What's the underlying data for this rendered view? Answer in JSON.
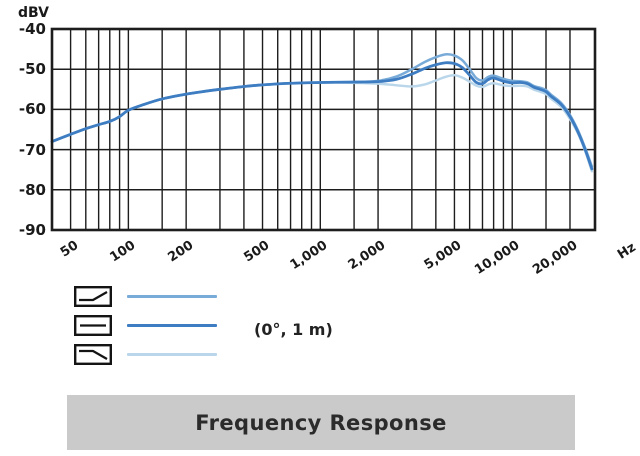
{
  "labels": {
    "y_unit": "dBV",
    "x_unit": "Hz"
  },
  "title_bar": {
    "text": "Frequency Response"
  },
  "chart_data": {
    "type": "line",
    "title": "Frequency Response",
    "legend_note": "(0°, 1 m)",
    "x_axis": {
      "scale": "log",
      "min": 40,
      "max": 27000,
      "unit": "Hz",
      "gridlines": [
        50,
        60,
        70,
        80,
        90,
        100,
        150,
        200,
        300,
        400,
        500,
        600,
        700,
        800,
        900,
        1000,
        1500,
        2000,
        3000,
        4000,
        5000,
        6000,
        7000,
        8000,
        9000,
        10000,
        15000,
        20000
      ],
      "tick_labels": [
        {
          "f": 50,
          "label": "50"
        },
        {
          "f": 100,
          "label": "100"
        },
        {
          "f": 200,
          "label": "200"
        },
        {
          "f": 500,
          "label": "500"
        },
        {
          "f": 1000,
          "label": "1,000"
        },
        {
          "f": 2000,
          "label": "2,000"
        },
        {
          "f": 5000,
          "label": "5,000"
        },
        {
          "f": 10000,
          "label": "10,000"
        },
        {
          "f": 20000,
          "label": "20,000"
        }
      ]
    },
    "y_axis": {
      "unit": "dBV",
      "min": -90,
      "max": -40,
      "ticks": [
        -40,
        -50,
        -60,
        -70,
        -80,
        -90
      ]
    },
    "frequencies": [
      40,
      50,
      60,
      70,
      80,
      90,
      100,
      120,
      150,
      200,
      250,
      300,
      400,
      500,
      700,
      1000,
      1500,
      2000,
      2500,
      3000,
      3500,
      4000,
      4500,
      5000,
      5500,
      6000,
      6500,
      7000,
      7500,
      8000,
      9000,
      10000,
      11000,
      12000,
      13000,
      14000,
      15000,
      16000,
      18000,
      20000,
      22000,
      24000,
      26000
    ],
    "series": [
      {
        "name": "high-frequency-boost",
        "legend_icon": "rise-at-high-end",
        "color": "#79abd8",
        "width": 2.5,
        "values": [
          -68,
          -66.2,
          -64.8,
          -63.8,
          -63.0,
          -61.8,
          -60.2,
          -58.8,
          -57.4,
          -56.2,
          -55.5,
          -55.0,
          -54.3,
          -53.9,
          -53.5,
          -53.3,
          -53.2,
          -52.9,
          -51.8,
          -50.0,
          -48.2,
          -47.0,
          -46.3,
          -46.6,
          -47.8,
          -50.0,
          -52.2,
          -52.8,
          -51.9,
          -51.6,
          -52.4,
          -52.9,
          -53.0,
          -53.3,
          -54.2,
          -54.6,
          -55.2,
          -56.4,
          -58.4,
          -61.4,
          -65.2,
          -69.6,
          -74.2
        ]
      },
      {
        "name": "flat",
        "legend_icon": "flat",
        "color": "#3e7dc2",
        "width": 2.8,
        "values": [
          -68,
          -66.2,
          -64.8,
          -63.8,
          -63.0,
          -61.8,
          -60.2,
          -58.8,
          -57.4,
          -56.2,
          -55.5,
          -55.0,
          -54.3,
          -53.9,
          -53.5,
          -53.3,
          -53.2,
          -53.1,
          -52.5,
          -51.2,
          -49.8,
          -48.9,
          -48.4,
          -48.6,
          -49.6,
          -51.5,
          -53.3,
          -53.6,
          -52.6,
          -52.2,
          -53.0,
          -53.4,
          -53.3,
          -53.6,
          -54.5,
          -55.0,
          -55.6,
          -56.8,
          -58.8,
          -61.8,
          -65.6,
          -70.0,
          -74.8
        ]
      },
      {
        "name": "high-frequency-cut",
        "legend_icon": "fall-at-high-end",
        "color": "#b9d6ea",
        "width": 2.4,
        "values": [
          -68,
          -66.2,
          -64.8,
          -63.8,
          -63.0,
          -61.8,
          -60.2,
          -58.8,
          -57.4,
          -56.2,
          -55.5,
          -55.0,
          -54.3,
          -53.9,
          -53.5,
          -53.3,
          -53.4,
          -53.6,
          -54.0,
          -54.3,
          -53.8,
          -52.8,
          -51.9,
          -51.5,
          -52.1,
          -53.1,
          -54.1,
          -54.4,
          -53.8,
          -53.5,
          -54.0,
          -54.2,
          -54.1,
          -54.3,
          -55.1,
          -55.6,
          -56.2,
          -57.4,
          -59.4,
          -62.4,
          -66.0,
          -70.4,
          -75.4
        ]
      }
    ]
  }
}
